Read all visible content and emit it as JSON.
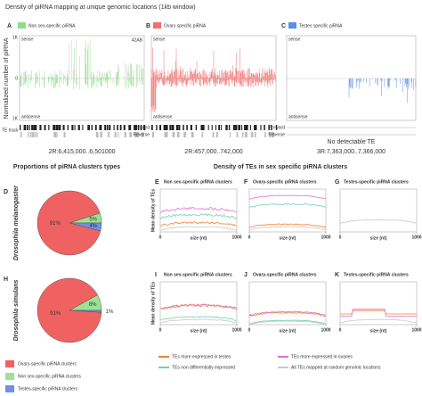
{
  "title": "Density of piRNA mapping at unique genomic locations (1kb window)",
  "genome_panels": [
    {
      "letter": "A",
      "legend": "Non sex-specific piRNA",
      "color": "#8fdc8a",
      "tag": "42AB",
      "coordinates": "2R:6,415,000..6,501000"
    },
    {
      "letter": "B",
      "legend": "Ovary specific piRNA",
      "color": "#f07070",
      "coordinates": "2R:457,000..742,000"
    },
    {
      "letter": "C",
      "legend": "Testes specific piRNA",
      "color": "#5b8fe0",
      "coordinates": "3R:7,363,000..7,366,000",
      "note": "No detectable TE"
    }
  ],
  "y_axis_label": "Normalized number of piRNA",
  "y_ticks": [
    "1K",
    "0",
    "1K"
  ],
  "sense": "sense",
  "antisense": "antisense",
  "te_track": "TE track",
  "forward": "Forward",
  "reverse": "Reverse",
  "pie_title": "Proportions of piRNA clusters types",
  "pies": [
    {
      "letter": "D",
      "species": "Drosophila melanogaster",
      "values": [
        91,
        5,
        4
      ],
      "value_labels": [
        "91%",
        "5%",
        "4%"
      ]
    },
    {
      "letter": "H",
      "species": "Drosophila simulans",
      "values": [
        91,
        8,
        1
      ],
      "value_labels": [
        "91%",
        "8%",
        "1%"
      ]
    }
  ],
  "pie_legend": [
    {
      "label": "Ovary-specific piRNA clusters",
      "color": "#f06262"
    },
    {
      "label": "Non sex-specific piRNA clusters",
      "color": "#9be394"
    },
    {
      "label": "Testes-specific piRNA clusters",
      "color": "#6f8fe8"
    }
  ],
  "density_title": "Density of TEs in sex specific piRNA clusters",
  "density_panels": [
    {
      "letter": "E",
      "title": "Non sex-specific piRNA clusters"
    },
    {
      "letter": "F",
      "title": "Ovary-specific piRNA clusters"
    },
    {
      "letter": "G",
      "title": "Testes-specific piRNA clusters"
    },
    {
      "letter": "I",
      "title": "Non sex-specific piRNA clusters"
    },
    {
      "letter": "J",
      "title": "Ovary-specific piRNA clusters"
    },
    {
      "letter": "K",
      "title": "Testes-specific piRNA clusters"
    }
  ],
  "density_y_label": "Mean density of TEs",
  "density_x_label": "size (nt)",
  "density_x_ticks": [
    0,
    1000
  ],
  "density_legend": [
    {
      "label": "TEs more expressed in testes",
      "color": "#f08030"
    },
    {
      "label": "TEs more expressed in ovaries",
      "color": "#e070d0"
    },
    {
      "label": "TEs non differentially expressed",
      "color": "#70d0b0"
    },
    {
      "label": "All TEs mapped at random genomic locations",
      "color": "#c8c8c8"
    }
  ]
}
